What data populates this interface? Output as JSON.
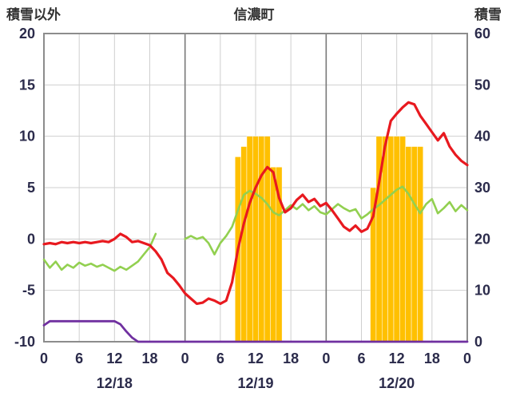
{
  "header": {
    "left_axis_title": "積雪以外",
    "title": "信濃町",
    "right_axis_title": "積雪"
  },
  "chart_data": {
    "type": "mixed",
    "title": "信濃町",
    "left_axis": {
      "label": "積雪以外",
      "min": -10,
      "max": 20,
      "ticks": [
        20,
        15,
        10,
        5,
        0,
        -5,
        -10
      ]
    },
    "right_axis": {
      "label": "積雪",
      "min": 0,
      "max": 60,
      "ticks": [
        60,
        50,
        40,
        30,
        20,
        10,
        0
      ]
    },
    "x_axis": {
      "hours_span": 72,
      "tick_interval": 6,
      "tick_labels": [
        "0",
        "6",
        "12",
        "18",
        "0",
        "6",
        "12",
        "18",
        "0",
        "6",
        "12",
        "18",
        "0"
      ],
      "day_labels": [
        "12/18",
        "12/19",
        "12/20"
      ],
      "day_boundaries_h": [
        24,
        48
      ]
    },
    "colors": {
      "grid": "#cfcfcf",
      "day_grid": "#787878",
      "border": "#8c8c8c",
      "text": "#2b2b4b"
    },
    "series": [
      {
        "name": "green-line",
        "type": "line",
        "axis": "left",
        "color": "#92d050",
        "width": 2.6,
        "values": [
          -2.0,
          -2.8,
          -2.2,
          -3.0,
          -2.5,
          -2.8,
          -2.3,
          -2.6,
          -2.4,
          -2.7,
          -2.5,
          -2.8,
          -3.1,
          -2.7,
          -3.0,
          -2.6,
          -2.2,
          -1.5,
          -0.8,
          0.5,
          null,
          null,
          null,
          null,
          0.0,
          0.3,
          0.0,
          0.2,
          -0.4,
          -1.5,
          -0.4,
          0.3,
          1.2,
          2.8,
          4.3,
          4.7,
          4.4,
          4.0,
          3.4,
          2.6,
          2.3,
          2.8,
          3.3,
          2.9,
          3.4,
          2.8,
          3.2,
          2.6,
          2.4,
          2.9,
          3.4,
          3.0,
          2.7,
          2.9,
          2.0,
          2.4,
          2.9,
          3.3,
          3.8,
          4.3,
          4.8,
          5.1,
          4.4,
          3.4,
          2.5,
          3.4,
          3.9,
          2.5,
          3.0,
          3.6,
          2.7,
          3.3,
          2.8
        ]
      },
      {
        "name": "red-line",
        "type": "line",
        "axis": "left",
        "color": "#e8191f",
        "width": 3.2,
        "values": [
          -0.5,
          -0.4,
          -0.5,
          -0.3,
          -0.4,
          -0.3,
          -0.4,
          -0.3,
          -0.4,
          -0.3,
          -0.2,
          -0.3,
          0.0,
          0.5,
          0.2,
          -0.3,
          -0.2,
          -0.4,
          -0.6,
          -1.2,
          -2.0,
          -3.3,
          -3.8,
          -4.5,
          -5.3,
          -5.8,
          -6.3,
          -6.2,
          -5.8,
          -6.0,
          -6.3,
          -6.0,
          -4.2,
          -1.0,
          1.5,
          3.5,
          5.0,
          6.2,
          7.0,
          6.5,
          4.0,
          2.6,
          3.0,
          3.8,
          4.3,
          3.6,
          3.9,
          3.2,
          3.5,
          2.8,
          2.0,
          1.2,
          0.8,
          1.3,
          0.7,
          1.0,
          2.2,
          5.5,
          9.0,
          11.5,
          12.2,
          12.8,
          13.3,
          13.1,
          12.0,
          11.2,
          10.4,
          9.6,
          10.3,
          9.0,
          8.2,
          7.6,
          7.2
        ]
      },
      {
        "name": "purple-line",
        "type": "line",
        "axis": "left",
        "color": "#7030a0",
        "width": 2.8,
        "values": [
          -8.4,
          -8,
          -8,
          -8,
          -8,
          -8,
          -8,
          -8,
          -8,
          -8,
          -8,
          -8,
          -8,
          -8.3,
          -9,
          -9.6,
          -10,
          -10,
          -10,
          -10,
          -10,
          -10,
          -10,
          -10,
          -10,
          -10,
          -10,
          -10,
          -10,
          -10,
          -10,
          -10,
          -10,
          -10,
          -10,
          -10,
          -10,
          -10,
          -10,
          -10,
          -10,
          -10,
          -10,
          -10,
          -10,
          -10,
          -10,
          -10,
          -10,
          -10,
          -10,
          -10,
          -10,
          -10,
          -10,
          -10,
          -10,
          -10,
          -10,
          -10,
          -10,
          -10,
          -10,
          -10,
          -10,
          -10,
          -10,
          -10,
          -10,
          -10,
          -10,
          -10,
          -10
        ]
      },
      {
        "name": "orange-bars",
        "type": "bar",
        "axis": "right",
        "color": "#ffc000",
        "values": [
          0,
          0,
          0,
          0,
          0,
          0,
          0,
          0,
          0,
          0,
          0,
          0,
          0,
          0,
          0,
          0,
          0,
          0,
          0,
          0,
          0,
          0,
          0,
          0,
          0,
          0,
          0,
          0,
          0,
          0,
          0,
          0,
          0,
          36,
          38,
          40,
          40,
          40,
          40,
          34,
          34,
          0,
          0,
          0,
          0,
          0,
          0,
          0,
          0,
          0,
          0,
          0,
          0,
          0,
          0,
          0,
          30,
          40,
          40,
          40,
          40,
          40,
          38,
          38,
          38,
          0,
          0,
          0,
          0,
          0,
          0,
          0,
          0
        ]
      }
    ]
  }
}
